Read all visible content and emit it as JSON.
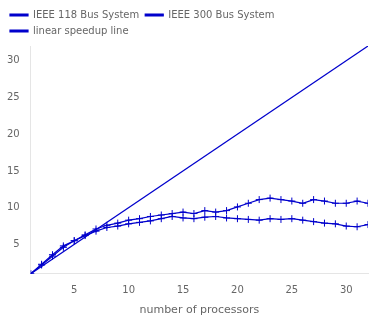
{
  "chart_data": {
    "type": "line",
    "xlabel": "number of processors",
    "xlim": [
      1,
      32
    ],
    "ylim": [
      1,
      32
    ],
    "xticks": [
      5,
      10,
      15,
      20,
      25,
      30
    ],
    "yticks": [
      5,
      10,
      15,
      20,
      25,
      30
    ],
    "grid": false,
    "legend": "upper left",
    "series": [
      {
        "name": "IEEE 118 Bus System",
        "color": "#0000cc",
        "marker": "plus",
        "x": [
          1,
          2,
          3,
          4,
          5,
          6,
          7,
          8,
          9,
          10,
          11,
          12,
          13,
          14,
          15,
          16,
          17,
          18,
          19,
          20,
          21,
          22,
          23,
          24,
          25,
          26,
          27,
          28,
          29,
          30,
          31,
          32
        ],
        "values": [
          1.0,
          2.2,
          3.4,
          4.6,
          5.5,
          6.2,
          6.8,
          7.3,
          7.5,
          7.8,
          8.0,
          8.2,
          8.5,
          8.8,
          8.6,
          8.5,
          8.7,
          8.8,
          8.6,
          8.5,
          8.4,
          8.3,
          8.5,
          8.4,
          8.5,
          8.3,
          8.1,
          7.9,
          7.8,
          7.5,
          7.4,
          7.7
        ]
      },
      {
        "name": "IEEE 300 Bus System",
        "color": "#0000cc",
        "marker": "plus",
        "x": [
          1,
          2,
          3,
          4,
          5,
          6,
          7,
          8,
          9,
          10,
          11,
          12,
          13,
          14,
          15,
          16,
          17,
          18,
          19,
          20,
          21,
          22,
          23,
          24,
          25,
          26,
          27,
          28,
          29,
          30,
          31,
          32
        ],
        "values": [
          1.0,
          2.3,
          3.6,
          4.8,
          5.5,
          6.3,
          7.1,
          7.6,
          7.9,
          8.3,
          8.5,
          8.8,
          9.0,
          9.2,
          9.4,
          9.2,
          9.6,
          9.4,
          9.6,
          10.1,
          10.6,
          11.1,
          11.3,
          11.1,
          10.9,
          10.6,
          11.1,
          10.9,
          10.6,
          10.6,
          10.9,
          10.6
        ]
      },
      {
        "name": "linear speedup line",
        "color": "#0000cc",
        "marker": "none",
        "x": [
          1,
          32
        ],
        "values": [
          1,
          32
        ]
      }
    ]
  }
}
